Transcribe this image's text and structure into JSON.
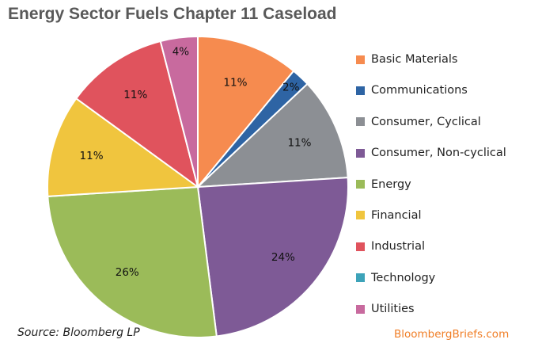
{
  "title": "Energy Sector Fuels Chapter 11 Caseload",
  "source": "Source: Bloomberg LP",
  "brand": "BloombergBriefs.com",
  "chart_data": {
    "type": "pie",
    "title": "Energy Sector Fuels Chapter 11 Caseload",
    "legend_position": "right",
    "slices": [
      {
        "name": "Basic Materials",
        "value": 11,
        "label": "11%",
        "color": "#f68b4f"
      },
      {
        "name": "Communications",
        "value": 2,
        "label": "2%",
        "color": "#2e64a4"
      },
      {
        "name": "Consumer, Cyclical",
        "value": 11,
        "label": "11%",
        "color": "#8c8f94"
      },
      {
        "name": "Consumer, Non-cyclical",
        "value": 24,
        "label": "24%",
        "color": "#7e5a96"
      },
      {
        "name": "Energy",
        "value": 26,
        "label": "26%",
        "color": "#9bbb59"
      },
      {
        "name": "Financial",
        "value": 11,
        "label": "11%",
        "color": "#f0c53e"
      },
      {
        "name": "Industrial",
        "value": 11,
        "label": "11%",
        "color": "#e0535d"
      },
      {
        "name": "Technology",
        "value": 0,
        "label": "",
        "color": "#3da3b9"
      },
      {
        "name": "Utilities",
        "value": 4,
        "label": "4%",
        "color": "#c86a9e"
      }
    ]
  }
}
